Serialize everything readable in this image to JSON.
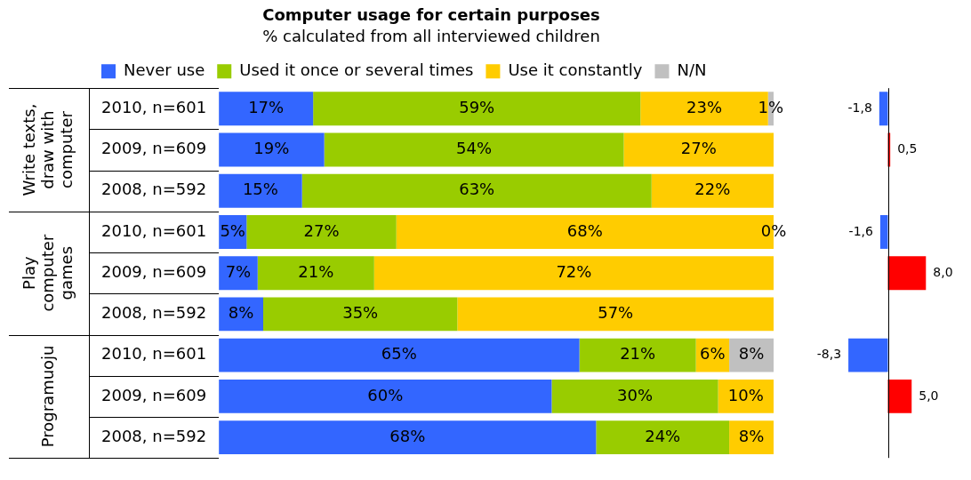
{
  "chart_data": [
    {
      "type": "bar",
      "orientation": "horizontal",
      "stacked": true,
      "title": "Computer usage for certain purposes",
      "subtitle": "% calculated from all interviewed children",
      "categories": [
        "2010, n=601",
        "2009, n=609",
        "2008, n=592",
        "2010, n=601",
        "2009, n=609",
        "2008, n=592",
        "2010, n=601",
        "2009, n=609",
        "2008, n=592"
      ],
      "series": [
        {
          "name": "Never use",
          "color": "#3366ff",
          "values": [
            17,
            19,
            15,
            5,
            7,
            8,
            65,
            60,
            68
          ],
          "value_labels": [
            "17%",
            "19%",
            "15%",
            "5%",
            "7%",
            "8%",
            "65%",
            "60%",
            "68%"
          ]
        },
        {
          "name": "Used it once or several times",
          "color": "#99cc00",
          "values": [
            59,
            54,
            63,
            27,
            21,
            35,
            21,
            30,
            24
          ],
          "value_labels": [
            "59%",
            "54%",
            "63%",
            "27%",
            "21%",
            "35%",
            "21%",
            "30%",
            "24%"
          ]
        },
        {
          "name": "Use it constantly",
          "color": "#ffcc00",
          "values": [
            23,
            27,
            22,
            68,
            72,
            57,
            6,
            10,
            8
          ],
          "value_labels": [
            "23%",
            "27%",
            "22%",
            "68%",
            "72%",
            "57%",
            "6%",
            "10%",
            "8%"
          ]
        },
        {
          "name": "N/N",
          "color": "#c0c0c0",
          "values": [
            1,
            null,
            null,
            0,
            null,
            null,
            8,
            null,
            null
          ],
          "value_labels": [
            "1%",
            null,
            null,
            "0%",
            null,
            null,
            "8%",
            null,
            null
          ]
        }
      ],
      "xlim": [
        0,
        100
      ],
      "tick_labels": "y",
      "grid": false,
      "legend": "top left",
      "annotations": [
        "Write texts, draw with computer",
        "Play computer games",
        "Programuoju"
      ]
    },
    {
      "type": "bar",
      "orientation": "horizontal",
      "categories": [
        null,
        null,
        null,
        null,
        null,
        null,
        null,
        null,
        null
      ],
      "values": [
        -1.8,
        0.5,
        null,
        -1.6,
        8.0,
        null,
        -8.3,
        5.0,
        null
      ],
      "colors": [
        "#3366ff",
        "#ff0000",
        null,
        "#3366ff",
        "#ff0000",
        null,
        "#3366ff",
        "#ff0000",
        null
      ],
      "value_labels": [
        "-1,8",
        "0,5",
        null,
        "-1,6",
        "8,0",
        null,
        "-8,3",
        "5,0",
        null
      ],
      "tick_labels": false,
      "grid": false,
      "legend": false
    }
  ]
}
